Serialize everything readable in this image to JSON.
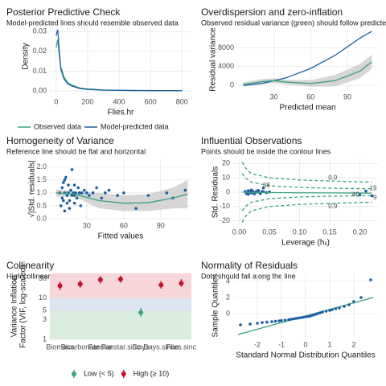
{
  "chart_data": [
    {
      "type": "line",
      "title": "Posterior Predictive Check",
      "subtitle": "Model-predicted lines should resemble observed data",
      "xlabel": "Flies.hr",
      "ylabel": "Density",
      "xlim": [
        -40,
        860
      ],
      "ylim": [
        -0.002,
        0.037
      ],
      "xticks": [
        0,
        200,
        400,
        600,
        800
      ],
      "yticks": [
        {
          "value": 0,
          "label": "0.00"
        },
        {
          "value": 0.01,
          "label": "0.01"
        },
        {
          "value": 0.02,
          "label": "0.02"
        },
        {
          "value": 0.03,
          "label": "0.03"
        }
      ],
      "grid": true,
      "series": [
        {
          "name": "Observed data",
          "color": "#3aa17e",
          "type": "line",
          "x": [
            0,
            10,
            20,
            30,
            50,
            75,
            100,
            150,
            200,
            300,
            500,
            800
          ],
          "values": [
            0.022,
            0.026,
            0.018,
            0.012,
            0.007,
            0.004,
            0.003,
            0.0015,
            0.001,
            0.0005,
            0.0002,
            0.0001
          ]
        },
        {
          "name": "Model-predicted data",
          "color": "#1b5fa0",
          "type": "line",
          "x": [
            0,
            10,
            20,
            30,
            50,
            75,
            100,
            150,
            200,
            300,
            500,
            800
          ],
          "values": [
            0.028,
            0.031,
            0.02,
            0.011,
            0.006,
            0.0035,
            0.0025,
            0.0012,
            0.0008,
            0.0004,
            0.0002,
            0.0001
          ]
        }
      ]
    },
    {
      "type": "line",
      "title": "Overdispersion and zero-inflation",
      "subtitle": "Observed residual variance (green) should follow predicted residual variance (blue)",
      "xlabel": "Predicted mean",
      "ylabel": "Residual variance",
      "xlim": [
        0,
        115
      ],
      "ylim": [
        -1000,
        12000
      ],
      "xticks": [
        30,
        60,
        90
      ],
      "yticks": [
        0,
        4000,
        8000
      ],
      "grid": true,
      "series": [
        {
          "color": "#cccccc",
          "type": "ribbon",
          "x": [
            5,
            20,
            30,
            40,
            60,
            80,
            100,
            110
          ],
          "values": [
            700,
            1300,
            1500,
            1200,
            1100,
            2200,
            4500,
            6500
          ],
          "lower": [
            -300,
            300,
            500,
            200,
            -300,
            -200,
            1500,
            3500
          ]
        },
        {
          "color": "#1b5fa0",
          "type": "line",
          "x": [
            5,
            20,
            40,
            60,
            80,
            100,
            110
          ],
          "values": [
            0,
            400,
            1600,
            3600,
            6400,
            10000,
            11500
          ]
        },
        {
          "color": "#3aa17e",
          "type": "line",
          "x": [
            5,
            20,
            30,
            40,
            60,
            80,
            100,
            110
          ],
          "values": [
            200,
            800,
            1000,
            700,
            400,
            1000,
            3000,
            5000
          ]
        }
      ]
    },
    {
      "type": "scatter",
      "title": "Homogeneity of Variance",
      "subtitle": "Reference line should be flat and horizontal",
      "xlabel": "Fitted values",
      "ylabel": "√|Std. residuals|",
      "xlim": [
        0,
        115
      ],
      "ylim": [
        0,
        2.3
      ],
      "xticks": [
        30,
        60,
        90
      ],
      "yticks": [
        {
          "value": 0,
          "label": "0.0"
        },
        {
          "value": 0.5,
          "label": "0.5"
        },
        {
          "value": 1,
          "label": "1.0"
        },
        {
          "value": 1.5,
          "label": "1.5"
        },
        {
          "value": 2,
          "label": "2.0"
        }
      ],
      "grid": true,
      "series": [
        {
          "color": "#cccccc",
          "type": "ribbon",
          "x": [
            5,
            20,
            40,
            60,
            80,
            100,
            112
          ],
          "values": [
            1.15,
            1.05,
            1.0,
            0.9,
            0.95,
            1.2,
            1.5
          ],
          "lower": [
            0.85,
            0.85,
            0.4,
            0.3,
            0.3,
            0.4,
            0.4
          ]
        },
        {
          "color": "#1b5fa0",
          "type": "scatter",
          "x": [
            8,
            9,
            10,
            10,
            11,
            12,
            12,
            13,
            14,
            14,
            15,
            15,
            16,
            17,
            18,
            18,
            19,
            20,
            20,
            21,
            22,
            23,
            24,
            25,
            26,
            28,
            30,
            32,
            35,
            38,
            42,
            45,
            48,
            55,
            60,
            70,
            80,
            95,
            100,
            110,
            12,
            16,
            20,
            24,
            11
          ],
          "values": [
            1.0,
            0.5,
            1.2,
            0.8,
            1.4,
            0.3,
            1.0,
            1.6,
            0.9,
            0.6,
            1.3,
            1.0,
            0.7,
            1.1,
            1.9,
            0.9,
            1.0,
            0.6,
            1.3,
            1.0,
            0.8,
            1.2,
            1.0,
            0.5,
            1.0,
            1.1,
            1.0,
            0.9,
            1.0,
            1.2,
            0.8,
            1.0,
            1.1,
            0.9,
            1.0,
            0.4,
            0.9,
            1.0,
            0.8,
            1.1,
            1.5,
            0.4,
            0.9,
            1.0,
            0.7
          ]
        },
        {
          "color": "#3aa17e",
          "type": "line",
          "x": [
            5,
            20,
            40,
            60,
            80,
            100,
            112
          ],
          "values": [
            1.0,
            0.95,
            0.7,
            0.6,
            0.62,
            0.8,
            0.95
          ]
        }
      ]
    },
    {
      "type": "scatter",
      "title": "Influential Observations",
      "subtitle": "Points should be inside the contour lines",
      "xlabel": "Leverage (hᵢᵢ)",
      "ylabel": "Std. Residuals",
      "xlim": [
        -0.01,
        0.23
      ],
      "ylim": [
        -23,
        23
      ],
      "xticks": [
        {
          "value": 0,
          "label": "0.00"
        },
        {
          "value": 0.05,
          "label": "0.05"
        },
        {
          "value": 0.1,
          "label": "0.10"
        },
        {
          "value": 0.15,
          "label": "0.15"
        },
        {
          "value": 0.2,
          "label": "0.20"
        }
      ],
      "yticks": [
        -20,
        -10,
        0,
        10,
        20
      ],
      "grid": true,
      "series": [
        {
          "color": "#3aa17e",
          "type": "line",
          "dashed": true,
          "x": [
            0.005,
            0.01,
            0.02,
            0.05,
            0.1,
            0.15,
            0.2,
            0.22
          ],
          "values": [
            21,
            17,
            13,
            10,
            8.5,
            7.8,
            7.2,
            7
          ]
        },
        {
          "color": "#3aa17e",
          "type": "line",
          "dashed": true,
          "x": [
            0.005,
            0.01,
            0.02,
            0.05,
            0.1,
            0.15,
            0.2,
            0.22
          ],
          "values": [
            13,
            10,
            7,
            4.5,
            3.3,
            2.8,
            2.5,
            2.4
          ]
        },
        {
          "color": "#3aa17e",
          "type": "line",
          "dashed": true,
          "x": [
            0.005,
            0.01,
            0.02,
            0.05,
            0.1,
            0.15,
            0.2,
            0.22
          ],
          "values": [
            -13,
            -10,
            -7,
            -4.5,
            -3.3,
            -2.8,
            -2.5,
            -2.4
          ]
        },
        {
          "color": "#3aa17e",
          "type": "line",
          "dashed": true,
          "x": [
            0.005,
            0.01,
            0.02,
            0.05,
            0.1,
            0.15,
            0.2,
            0.22
          ],
          "values": [
            -21,
            -17,
            -13,
            -10,
            -8.5,
            -7.8,
            -7.2,
            -7
          ]
        },
        {
          "color": "#1b5fa0",
          "type": "scatter",
          "x": [
            0.01,
            0.012,
            0.015,
            0.018,
            0.02,
            0.022,
            0.025,
            0.028,
            0.03,
            0.032,
            0.035,
            0.038,
            0.04,
            0.045,
            0.05,
            0.015,
            0.02,
            0.025,
            0.03,
            0.035,
            0.04,
            0.21,
            0.2,
            0.22
          ],
          "values": [
            0.5,
            -1,
            1,
            0,
            -0.5,
            0.8,
            -1.2,
            0.3,
            0,
            1.2,
            -0.8,
            0.5,
            3,
            -0.3,
            0.2,
            -1.5,
            1.5,
            -0.2,
            0.9,
            -1,
            0.4,
            0.8,
            -1.8,
            -2.5
          ]
        },
        {
          "color": "#3aa17e",
          "type": "line",
          "x": [
            0.005,
            0.05,
            0.1,
            0.15,
            0.2,
            0.22
          ],
          "values": [
            0,
            -0.3,
            -0.4,
            -0.5,
            -0.6,
            -0.7
          ]
        }
      ],
      "annotations": [
        {
          "text": "0.9",
          "x": 0.155,
          "y": 10,
          "color": "#3aa17e"
        },
        {
          "text": "0.9",
          "x": 0.155,
          "y": -10,
          "color": "#3aa17e"
        },
        {
          "text": "38",
          "x": 0.045,
          "y": 4.5,
          "color": "#1b5fa0"
        },
        {
          "text": "19",
          "x": 0.222,
          "y": 2.5,
          "color": "#1b5fa0"
        },
        {
          "text": "40",
          "x": 0.193,
          "y": -1.8,
          "color": "#1b5fa0"
        },
        {
          "text": "9",
          "x": 0.225,
          "y": -4,
          "color": "#1b5fa0"
        }
      ]
    },
    {
      "type": "errorbar",
      "title": "Collinearity",
      "subtitle": "High collinearity (VIF) may inflate parameter uncertainty",
      "ylabel": [
        "Variance Inflation",
        "Factor (VIF, log-scaled)"
      ],
      "categories": [
        "Biomass",
        "Bicarbonate",
        "Fanstar",
        "Fanstar.sinc",
        "Days",
        "Days.since",
        "Flies.sinc"
      ],
      "values": [
        20,
        22,
        28,
        29,
        4.5,
        21,
        23
      ],
      "lower": [
        16,
        18,
        23,
        24,
        3.6,
        17,
        19
      ],
      "upper": [
        25,
        27,
        34,
        35,
        5.8,
        26,
        29
      ],
      "point_colors": [
        "#c8102e",
        "#c8102e",
        "#c8102e",
        "#c8102e",
        "#3aa17e",
        "#c8102e",
        "#c8102e"
      ],
      "ylim": [
        1,
        40
      ],
      "log_y": true,
      "yticks": [
        1,
        3,
        5,
        10,
        30
      ],
      "grid": true,
      "bands": [
        {
          "from": 1,
          "to": 5,
          "color": "#d9eddf"
        },
        {
          "from": 5,
          "to": 10,
          "color": "#dce5f1"
        },
        {
          "from": 10,
          "to": 40,
          "color": "#f6d6d9"
        }
      ],
      "legend": [
        {
          "name": "Low (< 5)",
          "color": "#3aa17e"
        },
        {
          "name": "High (≥ 10)",
          "color": "#c8102e"
        }
      ]
    },
    {
      "type": "scatter",
      "title": "Normality of Residuals",
      "subtitle": "Dots should fall along the line",
      "xlabel": "Standard Normal Distribution Quantiles",
      "ylabel": "Sample Quantiles",
      "xlim": [
        -3,
        3
      ],
      "ylim": [
        -3,
        5
      ],
      "xticks": [
        -2,
        -1,
        0,
        1,
        2
      ],
      "yticks": [
        0,
        2,
        4
      ],
      "grid": true,
      "series": [
        {
          "color": "#3aa17e",
          "type": "line",
          "x": [
            -2.8,
            2.8
          ],
          "values": [
            -2.6,
            2.0
          ]
        },
        {
          "color": "#1b5fa0",
          "type": "scatter",
          "x": [
            -2.7,
            -2.3,
            -2.0,
            -1.8,
            -1.6,
            -1.4,
            -1.25,
            -1.1,
            -1.0,
            -0.85,
            -0.7,
            -0.6,
            -0.5,
            -0.4,
            -0.3,
            -0.2,
            -0.1,
            0,
            0.1,
            0.2,
            0.3,
            0.4,
            0.5,
            0.6,
            0.7,
            0.85,
            1.0,
            1.1,
            1.25,
            1.4,
            1.6,
            1.8,
            2.0,
            2.3,
            2.7
          ],
          "values": [
            -1.4,
            -1.3,
            -1.2,
            -1.1,
            -1.05,
            -1.0,
            -0.95,
            -0.9,
            -0.85,
            -0.8,
            -0.75,
            -0.7,
            -0.65,
            -0.6,
            -0.55,
            -0.5,
            -0.45,
            -0.4,
            -0.35,
            -0.3,
            -0.2,
            -0.1,
            0,
            0.1,
            0.2,
            0.3,
            0.4,
            0.5,
            0.6,
            0.7,
            0.9,
            1.1,
            1.5,
            2.0,
            4.2
          ]
        }
      ]
    }
  ]
}
